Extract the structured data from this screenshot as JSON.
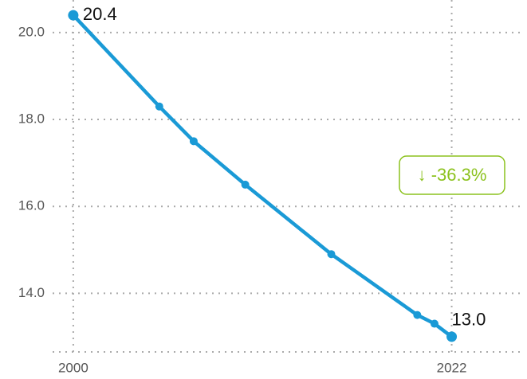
{
  "chart_data": {
    "type": "line",
    "x": [
      2000,
      2005,
      2007,
      2010,
      2015,
      2020,
      2021,
      2022
    ],
    "series": [
      {
        "color": "#1a9ad6",
        "values": [
          20.4,
          18.3,
          17.5,
          16.5,
          14.9,
          13.5,
          13.3,
          13.0
        ],
        "value_labels": [
          "20.4",
          null,
          null,
          null,
          null,
          null,
          null,
          "13.0"
        ]
      }
    ],
    "xlim": [
      1998.8,
      2026.1
    ],
    "xticks": [
      2000,
      2022
    ],
    "ylim": [
      12.65,
      20.75
    ],
    "yticks": [
      {
        "value": 14,
        "label": "14.0"
      },
      {
        "value": 16,
        "label": "16.0"
      },
      {
        "value": 18,
        "label": "18.0"
      },
      {
        "value": 20,
        "label": "20.0"
      }
    ],
    "grid": true,
    "annotation": "↓ -36.3%",
    "annotation_color": "#8cc21e"
  }
}
